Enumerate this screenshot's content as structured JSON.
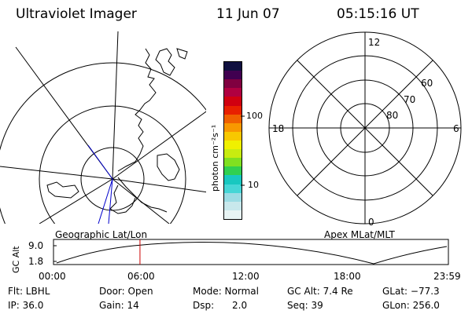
{
  "header": {
    "instrument": "Ultraviolet Imager",
    "date": "11 Jun 07",
    "time": "05:15:16 UT"
  },
  "colorbar": {
    "label": "photon cm⁻²s⁻¹",
    "tick_100": "100",
    "tick_10": "10",
    "colors": [
      "#e8f4f4",
      "#c8e8ec",
      "#9cdce4",
      "#46d6d6",
      "#18c8c0",
      "#30d050",
      "#80e020",
      "#c8ec10",
      "#f0f000",
      "#f8c800",
      "#f89800",
      "#f06000",
      "#e82000",
      "#d00010",
      "#b00040",
      "#800040",
      "#400050",
      "#101040"
    ]
  },
  "left_plot": {
    "label": "Geographic Lat/Lon"
  },
  "right_plot": {
    "label": "Apex MLat/MLT",
    "mlt_12": "12",
    "mlt_18": "18",
    "mlt_6": "6",
    "mlt_0": "0",
    "lat_60": "60",
    "lat_70": "70",
    "lat_80": "80"
  },
  "orbit_plot": {
    "ylabel": "GC Alt",
    "ytick_top": "9.0",
    "ytick_bottom": "1.8",
    "xticks": [
      "00:00",
      "06:00",
      "12:00",
      "18:00",
      "23:59"
    ],
    "current_marker_fraction": 0.219
  },
  "info": {
    "flt": "Flt: LBHL",
    "ip": "IP: 36.0",
    "door": "Door: Open",
    "gain": "Gain: 14",
    "mode": "Mode: Normal",
    "dsp": "Dsp:      2.0",
    "gcalt": "GC Alt: 7.4 Re",
    "seq": "Seq: 39",
    "glat": "GLat: −77.3",
    "glon": "GLon: 256.0"
  }
}
